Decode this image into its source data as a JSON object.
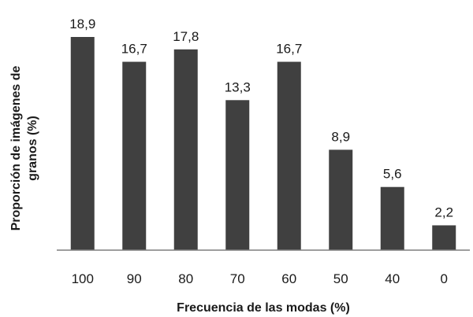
{
  "chart_data": {
    "type": "bar",
    "categories": [
      "100",
      "90",
      "80",
      "70",
      "60",
      "50",
      "40",
      "0"
    ],
    "values": [
      18.9,
      16.7,
      17.8,
      13.3,
      16.7,
      8.9,
      5.6,
      2.2
    ],
    "value_labels": [
      "18,9",
      "16,7",
      "17,8",
      "13,3",
      "16,7",
      "8,9",
      "5,6",
      "2,2"
    ],
    "xlabel": "Frecuencia de las modas (%)",
    "ylabel_lines": [
      "Proporción de imágenes de",
      "granos (%)"
    ],
    "ylim": [
      0,
      18.9
    ],
    "grid": false,
    "legend": "none",
    "bar_color": "#404040"
  }
}
